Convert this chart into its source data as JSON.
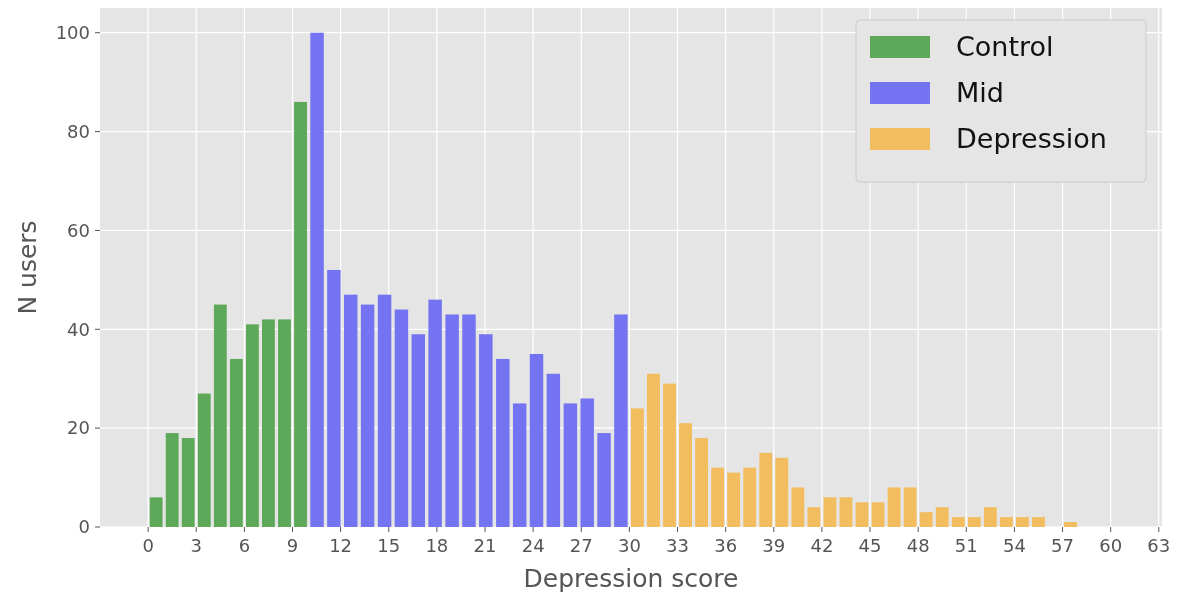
{
  "chart_data": {
    "type": "bar",
    "xlabel": "Depression score",
    "ylabel": "N users",
    "xlim": [
      -3,
      63.2
    ],
    "xticks": [
      0,
      3,
      6,
      9,
      12,
      15,
      18,
      21,
      24,
      27,
      30,
      33,
      36,
      39,
      42,
      45,
      48,
      51,
      54,
      57,
      60,
      63
    ],
    "ylim": [
      0,
      105
    ],
    "yticks": [
      0,
      20,
      40,
      60,
      80,
      100
    ],
    "grid": true,
    "legend": "top right",
    "series": [
      {
        "name": "Control",
        "color": "#5ea85a",
        "x": [
          0.5,
          1.5,
          2.5,
          3.5,
          4.5,
          5.5,
          6.5,
          7.5,
          8.5,
          9.5
        ],
        "values": [
          6,
          19,
          18,
          27,
          45,
          34,
          41,
          42,
          42,
          86
        ]
      },
      {
        "name": "Mid",
        "color": "#7474f2",
        "x": [
          10.53,
          11.58,
          12.63,
          13.68,
          14.74,
          15.79,
          16.84,
          17.89,
          18.95,
          20.0,
          21.05,
          22.11,
          23.16,
          24.21,
          25.26,
          26.32,
          27.37,
          28.42,
          29.47
        ],
        "values": [
          100,
          52,
          47,
          45,
          47,
          44,
          39,
          46,
          43,
          43,
          39,
          34,
          25,
          35,
          31,
          25,
          26,
          19,
          43
        ]
      },
      {
        "name": "Depression",
        "color": "#f2bd5e",
        "x": [
          30.5,
          31.5,
          32.5,
          33.5,
          34.5,
          35.5,
          36.5,
          37.5,
          38.5,
          39.5,
          40.5,
          41.5,
          42.5,
          43.5,
          44.5,
          45.5,
          46.5,
          47.5,
          48.5,
          49.5,
          50.5,
          51.5,
          52.5,
          53.5,
          54.5,
          55.5,
          56.5,
          57.5
        ],
        "values": [
          24,
          31,
          29,
          21,
          18,
          12,
          11,
          12,
          15,
          14,
          8,
          4,
          6,
          6,
          5,
          5,
          8,
          8,
          3,
          4,
          2,
          2,
          4,
          2,
          2,
          2,
          0,
          1
        ]
      }
    ]
  }
}
